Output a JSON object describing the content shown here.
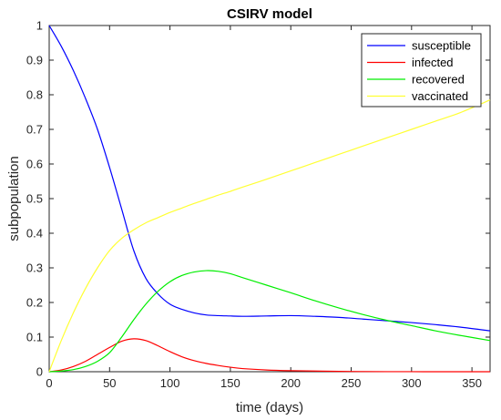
{
  "chart_data": {
    "type": "line",
    "title": "CSIRV model",
    "xlabel": "time  (days)",
    "ylabel": "subpopulation",
    "xlim": [
      0,
      365
    ],
    "ylim": [
      0,
      1
    ],
    "xticks": [
      0,
      50,
      100,
      150,
      200,
      250,
      300,
      350
    ],
    "yticks": [
      0,
      0.1,
      0.2,
      0.3,
      0.4,
      0.5,
      0.6,
      0.7,
      0.8,
      0.9,
      1
    ],
    "grid": false,
    "legend_position": "top-right",
    "x": [
      0,
      10,
      20,
      30,
      40,
      50,
      60,
      70,
      80,
      90,
      100,
      110,
      120,
      130,
      140,
      150,
      160,
      180,
      200,
      220,
      240,
      260,
      280,
      300,
      320,
      340,
      365
    ],
    "series": [
      {
        "name": "susceptible",
        "color": "#0000ff",
        "values": [
          1.0,
          0.94,
          0.87,
          0.79,
          0.7,
          0.59,
          0.47,
          0.35,
          0.27,
          0.225,
          0.195,
          0.18,
          0.17,
          0.164,
          0.162,
          0.161,
          0.16,
          0.161,
          0.162,
          0.16,
          0.157,
          0.152,
          0.147,
          0.142,
          0.136,
          0.129,
          0.118
        ]
      },
      {
        "name": "infected",
        "color": "#ff0000",
        "values": [
          0.0,
          0.005,
          0.015,
          0.03,
          0.05,
          0.07,
          0.088,
          0.095,
          0.09,
          0.075,
          0.058,
          0.043,
          0.032,
          0.024,
          0.018,
          0.013,
          0.009,
          0.005,
          0.003,
          0.002,
          0.001,
          0.0005,
          0.0002,
          0.0001,
          0.0,
          0.0,
          0.0
        ]
      },
      {
        "name": "recovered",
        "color": "#00ee00",
        "values": [
          0.0,
          0.002,
          0.006,
          0.015,
          0.03,
          0.055,
          0.1,
          0.15,
          0.195,
          0.232,
          0.26,
          0.278,
          0.288,
          0.292,
          0.29,
          0.283,
          0.272,
          0.25,
          0.228,
          0.205,
          0.184,
          0.165,
          0.148,
          0.133,
          0.118,
          0.105,
          0.09
        ]
      },
      {
        "name": "vaccinated",
        "color": "#ffff33",
        "values": [
          0.0,
          0.09,
          0.17,
          0.24,
          0.3,
          0.35,
          0.385,
          0.41,
          0.43,
          0.445,
          0.46,
          0.473,
          0.486,
          0.498,
          0.51,
          0.521,
          0.533,
          0.556,
          0.58,
          0.604,
          0.628,
          0.652,
          0.676,
          0.7,
          0.724,
          0.748,
          0.785
        ]
      }
    ]
  }
}
